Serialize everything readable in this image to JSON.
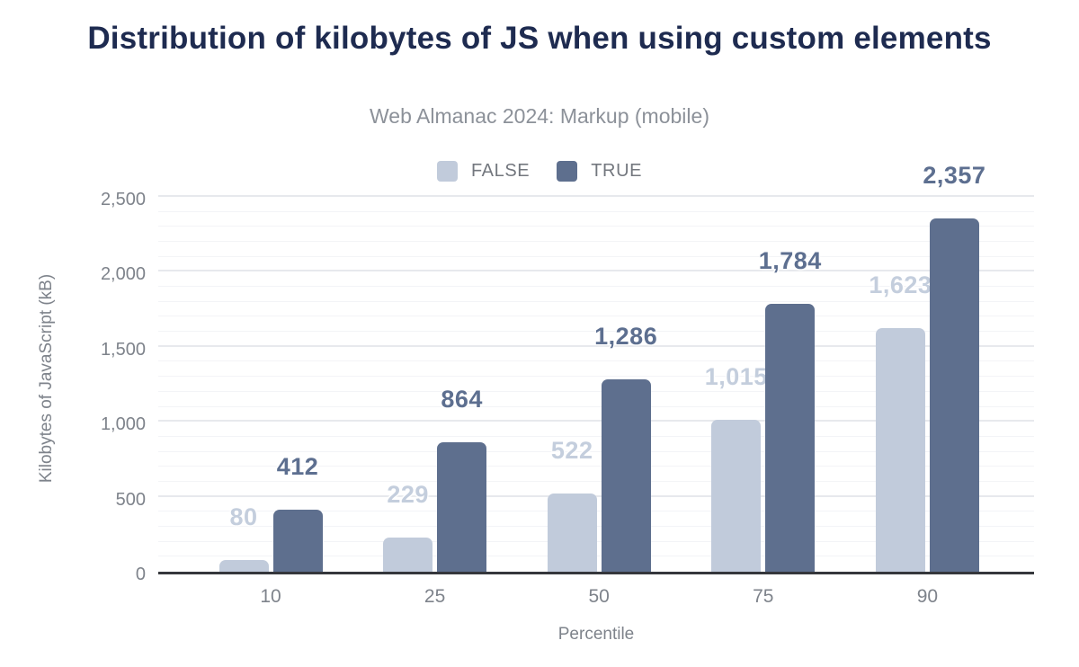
{
  "chart_data": {
    "type": "bar",
    "title": "Distribution of kilobytes of JS when using custom elements",
    "subtitle": "Web Almanac 2024: Markup (mobile)",
    "xlabel": "Percentile",
    "ylabel": "Kilobytes of JavaScript (kB)",
    "categories": [
      "10",
      "25",
      "50",
      "75",
      "90"
    ],
    "series": [
      {
        "name": "FALSE",
        "color": "#c1cbdb",
        "label_color": "#c4cedd",
        "values": [
          80,
          229,
          522,
          1015,
          1623
        ]
      },
      {
        "name": "TRUE",
        "color": "#5e6f8e",
        "label_color": "#5d6f90",
        "values": [
          412,
          864,
          1286,
          1784,
          2357
        ]
      }
    ],
    "ylim": [
      0,
      2500
    ],
    "yticks": [
      0,
      500,
      1000,
      1500,
      2000,
      2500
    ],
    "minor_grid_step": 100,
    "grid": "on",
    "legend_position": "top",
    "colors": {
      "title": "#1e2b50",
      "subtitle": "#8c9199",
      "axis_text": "#7e838b",
      "legend_text": "#73777e",
      "axis_line": "#35373c",
      "grid_major": "#e7e9ed",
      "grid_minor": "#f3f4f7",
      "background": "#ffffff"
    }
  }
}
